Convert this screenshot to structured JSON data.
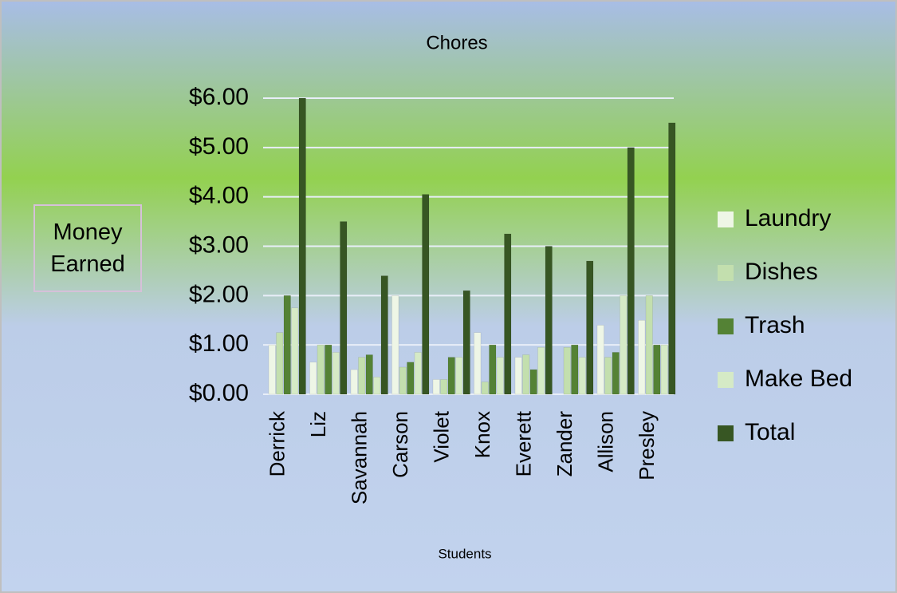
{
  "chart_data": {
    "type": "bar",
    "title": "Chores",
    "y_label": "Money Earned",
    "x_label": "Students",
    "categories": [
      "Derrick",
      "Liz",
      "Savannah",
      "Carson",
      "Violet",
      "Knox",
      "Everett",
      "Zander",
      "Allison",
      "Presley"
    ],
    "series": [
      {
        "name": "Laundry",
        "color": "#eef6e6",
        "values": [
          1.0,
          0.65,
          0.5,
          2.0,
          0.3,
          1.25,
          0.75,
          0,
          1.4,
          1.5
        ]
      },
      {
        "name": "Dishes",
        "color": "#c3dfae",
        "values": [
          1.25,
          1.0,
          0.75,
          0.55,
          0.3,
          0.25,
          0.8,
          0.95,
          0.75,
          2.0
        ]
      },
      {
        "name": "Trash",
        "color": "#548235",
        "values": [
          2.0,
          1.0,
          0.8,
          0.65,
          0.75,
          1.0,
          0.5,
          1.0,
          0.85,
          1.0
        ]
      },
      {
        "name": "Make Bed",
        "color": "#d5eac6",
        "values": [
          1.75,
          0.85,
          0.35,
          0.85,
          0.75,
          0.75,
          0.95,
          0.75,
          2.0,
          1.0
        ]
      },
      {
        "name": "Total",
        "color": "#375623",
        "values": [
          6.0,
          3.5,
          2.4,
          4.05,
          2.1,
          3.25,
          3.0,
          2.7,
          5.0,
          5.5
        ]
      }
    ],
    "ylim": [
      0,
      6
    ],
    "yticks": [
      {
        "value": 0,
        "label": "$0.00"
      },
      {
        "value": 1,
        "label": "$1.00"
      },
      {
        "value": 2,
        "label": "$2.00"
      },
      {
        "value": 3,
        "label": "$3.00"
      },
      {
        "value": 4,
        "label": "$4.00"
      },
      {
        "value": 5,
        "label": "$5.00"
      },
      {
        "value": 6,
        "label": "$6.00"
      }
    ],
    "grid": true,
    "legend": "right"
  }
}
